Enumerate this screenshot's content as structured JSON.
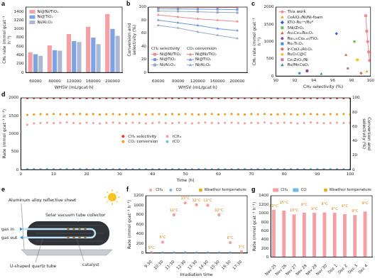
{
  "chart_data": [
    {
      "panel": "a",
      "type": "bar",
      "categories": [
        "60000",
        "80000",
        "120000",
        "160000",
        "200000"
      ],
      "xlabel": "WHSV (mL/gcat·h)",
      "ylabel": "CH₄ rate (mmol gcat⁻¹ h⁻¹)",
      "ylim": [
        0,
        1500
      ],
      "yticks": [
        0,
        200,
        400,
        600,
        800,
        1000,
        1200,
        1400
      ],
      "grid": false,
      "legend": "upper left",
      "series": [
        {
          "name": "Ni@Ni/TiO₂",
          "color": "#f5a0a5",
          "values": [
            460,
            620,
            880,
            1050,
            1340
          ]
        },
        {
          "name": "Ni@TiO₂",
          "color": "#7fa2e3",
          "values": [
            420,
            510,
            720,
            800,
            1000
          ]
        },
        {
          "name": "Ni/Al₂O₃",
          "color": "#aab8d6",
          "values": [
            380,
            500,
            700,
            650,
            840
          ]
        }
      ]
    },
    {
      "panel": "b",
      "type": "line",
      "categories": [
        "60000",
        "80000",
        "120000",
        "160000",
        "200000"
      ],
      "xlabel": "WHSV (mL/gcat·h)",
      "ylabel": "Conversion and selectivity (%)",
      "ylim": [
        0,
        100
      ],
      "yticks": [
        0,
        20,
        40,
        60,
        80,
        100
      ],
      "grid": false,
      "legend": "lower left",
      "series": [
        {
          "name": "Ni@Ni/TiO₂",
          "group": "CH₄ selectivity",
          "color": "#f08a8f",
          "marker": "square",
          "line_style": "solid",
          "values": [
            99.8,
            99.7,
            99.6,
            99.5,
            99.4
          ]
        },
        {
          "name": "Ni@TiO₂",
          "group": "CH₄ selectivity",
          "color": "#6f95e0",
          "marker": "square",
          "line_style": "solid",
          "values": [
            97.5,
            97.2,
            96.8,
            96.5,
            96.0
          ]
        },
        {
          "name": "Ni/Al₂O₃",
          "group": "CH₄ selectivity",
          "color": "#9aa8c4",
          "marker": "square",
          "line_style": "solid",
          "values": [
            94.0,
            93.5,
            92.8,
            92.0,
            91.5
          ]
        },
        {
          "name": "Ni@Ni/TiO₂",
          "group": "CO₂ conversion",
          "color": "#f08a8f",
          "marker": "triangle",
          "line_style": "solid",
          "values": [
            88,
            85,
            82,
            80,
            78
          ]
        },
        {
          "name": "Ni@TiO₂",
          "group": "CO₂ conversion",
          "color": "#6f95e0",
          "marker": "triangle",
          "line_style": "solid",
          "values": [
            80,
            76,
            72,
            67,
            64
          ]
        },
        {
          "name": "Ni/Al₂O₃",
          "group": "CO₂ conversion",
          "color": "#9aa8c4",
          "marker": "triangle",
          "line_style": "solid",
          "values": [
            72,
            68,
            62,
            57,
            52
          ]
        }
      ]
    },
    {
      "panel": "c",
      "type": "scatter",
      "xlabel": "CH₄ selectivity (%)",
      "ylabel": "CH₄ rate (mmol gcat⁻¹ h⁻¹)",
      "xlim": [
        90,
        100
      ],
      "xticks": [
        90,
        92,
        94,
        96,
        98,
        100
      ],
      "ylim": [
        0,
        2000
      ],
      "yticks": [
        0,
        500,
        1000,
        1500,
        2000
      ],
      "grid": false,
      "legend": "upper left",
      "series": [
        {
          "name": "This work",
          "color": "#f08a8f",
          "marker": "circle",
          "line_style": "solid",
          "x": [
            99.9,
            99.8,
            99.7,
            99.6,
            99.5
          ],
          "values": [
            450,
            700,
            1000,
            1300,
            1750
          ]
        },
        {
          "name": "CeAlOₓ/Ni/Ni-foam",
          "color": "#f39a1e",
          "marker": "triangle",
          "x": [
            99.6
          ],
          "values": [
            130
          ]
        },
        {
          "name": "KTO-Ruˣ⁺/Ru⁰",
          "color": "#2f5fd0",
          "marker": "diamond",
          "x": [
            96.4
          ],
          "values": [
            1230
          ]
        },
        {
          "name": "5Ni/ZrO₂",
          "color": "#6bbf59",
          "marker": "square",
          "x": [
            98.3
          ],
          "values": [
            1000
          ]
        },
        {
          "name": "Au₁Ce₁₀Ru₁Oₓ",
          "color": "#d05c2a",
          "marker": "triangle",
          "x": [
            97.4
          ],
          "values": [
            610
          ]
        },
        {
          "name": "Ru₀.₀₅Co₀.₉₅/TiO₂",
          "color": "#8e44ad",
          "marker": "circle",
          "x": [
            93.3
          ],
          "values": [
            150
          ]
        },
        {
          "name": "Ru₁Ti₁Oₓ",
          "color": "#3b8ed8",
          "marker": "square",
          "x": [
            92.5
          ],
          "values": [
            80
          ]
        },
        {
          "name": "Ir-CoOₓ/Al₂O₃",
          "color": "#e06666",
          "marker": "diamond",
          "x": [
            99.0
          ],
          "values": [
            80
          ]
        },
        {
          "name": "RuO₂C@C",
          "color": "#f1c232",
          "marker": "circle",
          "x": [
            98.6
          ],
          "values": [
            470
          ]
        },
        {
          "name": "Ce₂ZrO₂/Ni",
          "color": "#c27ba0",
          "marker": "square",
          "x": [
            97.6
          ],
          "values": [
            220
          ]
        },
        {
          "name": "Ru/MnCoOₓ",
          "color": "#45818e",
          "marker": "triangle",
          "x": [
            94.8
          ],
          "values": [
            60
          ]
        }
      ]
    },
    {
      "panel": "d",
      "type": "scatter",
      "xlabel": "Time (h)",
      "ylabel": "Rate (mmol gcat⁻¹ h⁻¹)",
      "y2label": "Conversion and selectivity (%)",
      "xlim": [
        0,
        100
      ],
      "xticks": [
        0,
        10,
        20,
        30,
        40,
        50,
        60,
        70,
        80,
        90,
        100
      ],
      "ylim": [
        0,
        2000
      ],
      "yticks": [
        0,
        500,
        1000,
        1500,
        2000
      ],
      "y2lim": [
        0,
        100
      ],
      "y2ticks": [
        0,
        20,
        40,
        60,
        80,
        100
      ],
      "grid": false,
      "legend": "center",
      "x": [
        0,
        2,
        4,
        6,
        8,
        10,
        12,
        14,
        16,
        18,
        20,
        22,
        24,
        26,
        28,
        30,
        32,
        34,
        36,
        38,
        40,
        42,
        44,
        46,
        48,
        50,
        52,
        54,
        56,
        58,
        60,
        62,
        64,
        66,
        68,
        70,
        72,
        74,
        76,
        78,
        80,
        82,
        84,
        86,
        88,
        90,
        92,
        94,
        96,
        98,
        100
      ],
      "series": [
        {
          "name": "CH₄ selectivity",
          "color": "#e8342e",
          "marker": "circle",
          "axis": "y2",
          "values": [
            99.3,
            99.6,
            99.7,
            99.6,
            99.7,
            99.6,
            99.5,
            99.7,
            99.6,
            99.7,
            99.6,
            99.5,
            99.7,
            99.6,
            99.6,
            99.7,
            99.5,
            99.6,
            99.7,
            99.6,
            99.6,
            99.7,
            99.5,
            99.6,
            99.7,
            99.6,
            99.6,
            99.5,
            99.7,
            99.6,
            99.7,
            99.6,
            99.5,
            99.6,
            99.7,
            99.6,
            99.6,
            99.7,
            99.5,
            99.6,
            99.6,
            99.7,
            99.6,
            99.5,
            99.7,
            99.6,
            99.6,
            99.7,
            99.6,
            99.5,
            99.6
          ]
        },
        {
          "name": "CO₂ conversion",
          "color": "#f39a1e",
          "marker": "circle",
          "axis": "y2",
          "values": [
            73.5,
            76.2,
            77.0,
            77.3,
            77.1,
            77.5,
            77.2,
            77.0,
            77.4,
            77.6,
            77.1,
            77.3,
            76.9,
            77.2,
            77.5,
            77.0,
            77.3,
            77.1,
            77.4,
            76.8,
            77.2,
            77.5,
            77.0,
            77.3,
            77.1,
            77.4,
            77.2,
            76.9,
            77.3,
            77.5,
            77.0,
            77.2,
            77.4,
            77.1,
            76.9,
            77.3,
            77.2,
            77.5,
            77.0,
            77.1,
            77.4,
            77.2,
            76.8,
            77.3,
            77.5,
            77.1,
            77.0,
            77.3,
            77.2,
            77.4,
            77.1
          ]
        },
        {
          "name": "rCH₄",
          "color": "#f5a0a5",
          "marker": "circle",
          "values": [
            1050,
            1250,
            1290,
            1300,
            1310,
            1295,
            1305,
            1320,
            1300,
            1290,
            1310,
            1300,
            1285,
            1305,
            1315,
            1300,
            1295,
            1310,
            1305,
            1290,
            1300,
            1315,
            1300,
            1295,
            1310,
            1300,
            1290,
            1305,
            1315,
            1300,
            1295,
            1305,
            1310,
            1300,
            1290,
            1305,
            1300,
            1315,
            1295,
            1300,
            1310,
            1305,
            1290,
            1300,
            1315,
            1305,
            1295,
            1300,
            1310,
            1300,
            1305
          ]
        },
        {
          "name": "rCO",
          "color": "#72b7e6",
          "marker": "circle",
          "values": [
            40,
            18,
            15,
            14,
            15,
            14,
            13,
            15,
            14,
            15,
            14,
            13,
            15,
            14,
            14,
            15,
            13,
            14,
            15,
            14,
            14,
            15,
            13,
            14,
            15,
            14,
            14,
            13,
            15,
            14,
            15,
            14,
            13,
            14,
            15,
            14,
            14,
            15,
            13,
            14,
            14,
            15,
            14,
            13,
            15,
            14,
            14,
            15,
            14,
            13,
            14
          ]
        }
      ]
    },
    {
      "panel": "f",
      "type": "line",
      "categories": [
        "9:30",
        "10:30",
        "11:30",
        "12:30",
        "13:30",
        "14:30",
        "15:30",
        "16:30",
        "17:30"
      ],
      "xlabel": "Irradiation time",
      "ylabel": "Rate (mmol gcat⁻¹ h⁻¹)",
      "ylim": [
        0,
        1200
      ],
      "yticks": [
        0,
        200,
        400,
        600,
        800,
        1000,
        1200
      ],
      "grid": false,
      "legend": "top",
      "annotation_title": "Weather temperature",
      "annotations": [
        "5°C",
        "8°C",
        "11°C",
        "13°C",
        "12°C",
        "12°C",
        "10°C",
        "8°C",
        "7°C"
      ],
      "series": [
        {
          "name": "CH₄",
          "color": "#f5a0a5",
          "marker": "circle",
          "line_style": "none",
          "values": [
            10,
            230,
            800,
            1050,
            1010,
            1000,
            800,
            220,
            30
          ]
        },
        {
          "name": "CO",
          "color": "#72b7e6",
          "marker": "circle",
          "line_style": "none",
          "values": [
            2,
            3,
            5,
            6,
            5,
            5,
            4,
            3,
            2
          ]
        }
      ]
    },
    {
      "panel": "g",
      "type": "bar",
      "categories": [
        "Nov 25",
        "Nov 26",
        "Nov 27",
        "Nov 28",
        "Nov 29",
        "Nov 30",
        "Dec 1",
        "Dec 2",
        "Dec 3",
        "Dec 4"
      ],
      "ylabel": "Rate (mmol gcat⁻¹ h⁻¹)",
      "ylim": [
        0,
        1400
      ],
      "yticks": [
        0,
        200,
        400,
        600,
        800,
        1000,
        1200,
        1400
      ],
      "grid": false,
      "legend": "top",
      "annotation_title": "Weather temperature",
      "annotations": [
        "12°C",
        "15°C",
        "10°C",
        "9°C",
        "9°C",
        "8°C",
        "8°C",
        "4°C",
        "8°C",
        "9°C"
      ],
      "series": [
        {
          "name": "CH₄",
          "color": "#f5a0a5",
          "values": [
            1080,
            1060,
            970,
            1010,
            1010,
            1020,
            1010,
            980,
            960,
            1040
          ]
        },
        {
          "name": "CO",
          "color": "#72b7e6",
          "values": [
            6,
            5,
            5,
            6,
            5,
            5,
            6,
            5,
            5,
            6
          ]
        }
      ]
    }
  ],
  "diagram": {
    "panel": "e",
    "labels": {
      "sheet": "Aluminum alloy reflective sheet",
      "collector": "Solar vacuum tube collector",
      "gas_in": "gas in",
      "gas_out": "gas out",
      "tube": "U-shaped quartz tube",
      "catalyst": "catalyst"
    }
  }
}
